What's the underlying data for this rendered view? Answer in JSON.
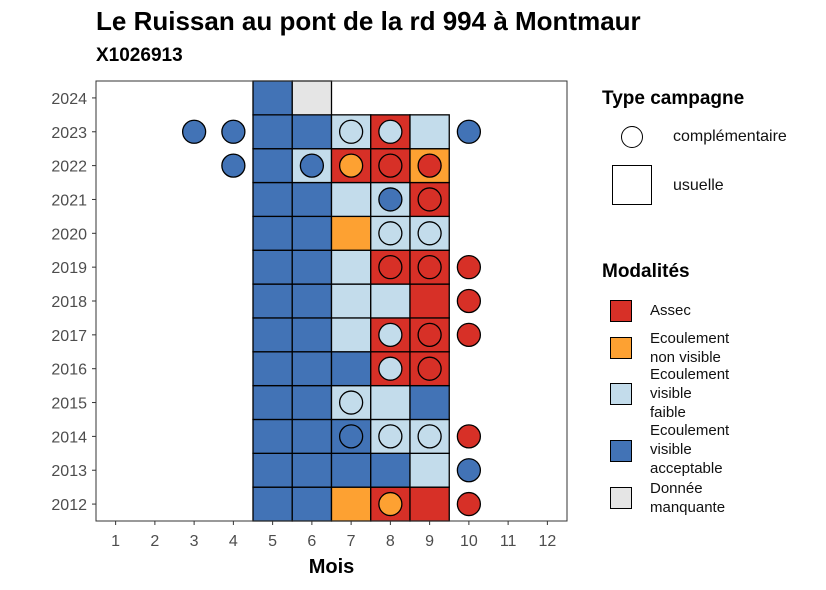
{
  "title": "Le Ruissan au pont de la rd 994 à Montmaur",
  "subtitle": "X1026913",
  "legend": {
    "shape_title": "Type campagne",
    "shapes": [
      {
        "label": "complémentaire",
        "shape": "circle"
      },
      {
        "label": "usuelle",
        "shape": "square"
      }
    ],
    "fill_title": "Modalités",
    "fills": [
      {
        "key": "assec",
        "lines": [
          "Assec"
        ],
        "color": "#D73027"
      },
      {
        "key": "nv",
        "lines": [
          "Ecoulement",
          "non visible"
        ],
        "color": "#FDA132"
      },
      {
        "key": "faible",
        "lines": [
          "Ecoulement",
          "visible",
          "faible"
        ],
        "color": "#C3DCEB"
      },
      {
        "key": "acceptable",
        "lines": [
          "Ecoulement",
          "visible",
          "acceptable"
        ],
        "color": "#4273B6"
      },
      {
        "key": "manquante",
        "lines": [
          "Donnée",
          "manquante"
        ],
        "color": "#E5E5E5"
      }
    ]
  },
  "chart_data": {
    "type": "heatmap",
    "xlabel": "Mois",
    "ylabel": "",
    "x_ticks": [
      "1",
      "2",
      "3",
      "4",
      "5",
      "6",
      "7",
      "8",
      "9",
      "10",
      "11",
      "12"
    ],
    "y_ticks": [
      "2012",
      "2013",
      "2014",
      "2015",
      "2016",
      "2017",
      "2018",
      "2019",
      "2020",
      "2021",
      "2022",
      "2023",
      "2024"
    ],
    "xlim": [
      0.5,
      12.5
    ],
    "ylim": [
      2011.5,
      2024.5
    ],
    "colors": {
      "assec": "#D73027",
      "nv": "#FDA132",
      "faible": "#C3DCEB",
      "acceptable": "#4273B6",
      "manquante": "#E5E5E5"
    },
    "usuelle": [
      {
        "year": 2012,
        "months": {
          "5": "acceptable",
          "6": "acceptable",
          "7": "nv",
          "8": "assec",
          "9": "assec"
        }
      },
      {
        "year": 2013,
        "months": {
          "5": "acceptable",
          "6": "acceptable",
          "7": "acceptable",
          "8": "acceptable",
          "9": "faible"
        }
      },
      {
        "year": 2014,
        "months": {
          "5": "acceptable",
          "6": "acceptable",
          "7": "acceptable",
          "8": "faible",
          "9": "faible"
        }
      },
      {
        "year": 2015,
        "months": {
          "5": "acceptable",
          "6": "acceptable",
          "7": "faible",
          "8": "faible",
          "9": "acceptable"
        }
      },
      {
        "year": 2016,
        "months": {
          "5": "acceptable",
          "6": "acceptable",
          "7": "acceptable",
          "8": "assec",
          "9": "assec"
        }
      },
      {
        "year": 2017,
        "months": {
          "5": "acceptable",
          "6": "acceptable",
          "7": "faible",
          "8": "assec",
          "9": "assec"
        }
      },
      {
        "year": 2018,
        "months": {
          "5": "acceptable",
          "6": "acceptable",
          "7": "faible",
          "8": "faible",
          "9": "assec"
        }
      },
      {
        "year": 2019,
        "months": {
          "5": "acceptable",
          "6": "acceptable",
          "7": "faible",
          "8": "assec",
          "9": "assec"
        }
      },
      {
        "year": 2020,
        "months": {
          "5": "acceptable",
          "6": "acceptable",
          "7": "nv",
          "8": "faible",
          "9": "faible"
        }
      },
      {
        "year": 2021,
        "months": {
          "5": "acceptable",
          "6": "acceptable",
          "7": "faible",
          "8": "faible",
          "9": "assec"
        }
      },
      {
        "year": 2022,
        "months": {
          "5": "acceptable",
          "6": "faible",
          "7": "assec",
          "8": "assec",
          "9": "nv"
        }
      },
      {
        "year": 2023,
        "months": {
          "5": "acceptable",
          "6": "acceptable",
          "7": "faible",
          "8": "assec",
          "9": "faible"
        }
      },
      {
        "year": 2024,
        "months": {
          "5": "acceptable",
          "6": "manquante"
        }
      }
    ],
    "complementaire": [
      {
        "year": 2012,
        "month": 8,
        "modalite": "nv"
      },
      {
        "year": 2012,
        "month": 10,
        "modalite": "assec"
      },
      {
        "year": 2013,
        "month": 10,
        "modalite": "acceptable"
      },
      {
        "year": 2014,
        "month": 7,
        "modalite": "acceptable"
      },
      {
        "year": 2014,
        "month": 8,
        "modalite": "faible"
      },
      {
        "year": 2014,
        "month": 9,
        "modalite": "faible"
      },
      {
        "year": 2014,
        "month": 10,
        "modalite": "assec"
      },
      {
        "year": 2015,
        "month": 7,
        "modalite": "faible"
      },
      {
        "year": 2016,
        "month": 8,
        "modalite": "faible"
      },
      {
        "year": 2016,
        "month": 9,
        "modalite": "assec"
      },
      {
        "year": 2017,
        "month": 8,
        "modalite": "faible"
      },
      {
        "year": 2017,
        "month": 9,
        "modalite": "assec"
      },
      {
        "year": 2017,
        "month": 10,
        "modalite": "assec"
      },
      {
        "year": 2018,
        "month": 10,
        "modalite": "assec"
      },
      {
        "year": 2019,
        "month": 8,
        "modalite": "assec"
      },
      {
        "year": 2019,
        "month": 9,
        "modalite": "assec"
      },
      {
        "year": 2019,
        "month": 10,
        "modalite": "assec"
      },
      {
        "year": 2020,
        "month": 8,
        "modalite": "faible"
      },
      {
        "year": 2020,
        "month": 9,
        "modalite": "faible"
      },
      {
        "year": 2021,
        "month": 8,
        "modalite": "acceptable"
      },
      {
        "year": 2021,
        "month": 9,
        "modalite": "assec"
      },
      {
        "year": 2022,
        "month": 4,
        "modalite": "acceptable"
      },
      {
        "year": 2022,
        "month": 6,
        "modalite": "acceptable"
      },
      {
        "year": 2022,
        "month": 7,
        "modalite": "nv"
      },
      {
        "year": 2022,
        "month": 8,
        "modalite": "assec"
      },
      {
        "year": 2022,
        "month": 9,
        "modalite": "assec"
      },
      {
        "year": 2023,
        "month": 3,
        "modalite": "acceptable"
      },
      {
        "year": 2023,
        "month": 4,
        "modalite": "acceptable"
      },
      {
        "year": 2023,
        "month": 7,
        "modalite": "faible"
      },
      {
        "year": 2023,
        "month": 8,
        "modalite": "faible"
      },
      {
        "year": 2023,
        "month": 10,
        "modalite": "acceptable"
      }
    ]
  }
}
